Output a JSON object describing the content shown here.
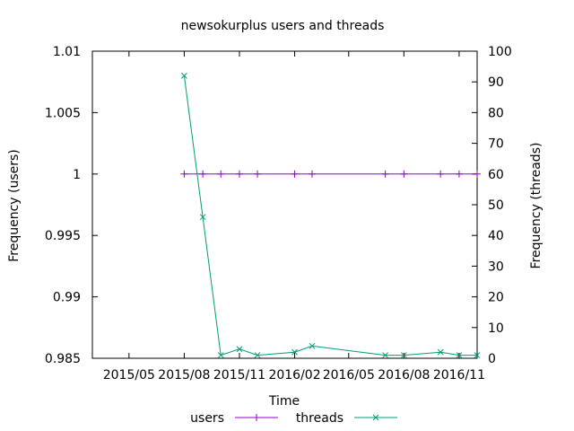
{
  "chart_data": {
    "type": "line",
    "title": "newsokurplus users and threads",
    "xlabel": "Time",
    "ylabel": "Frequency (users)",
    "y2label": "Frequency (threads)",
    "xlim": [
      "2015-03-01",
      "2016-12-01"
    ],
    "ylim": [
      0.985,
      1.01
    ],
    "y2lim": [
      0,
      100
    ],
    "x_ticks": [
      "2015/05",
      "2015/08",
      "2015/11",
      "2016/02",
      "2016/05",
      "2016/08",
      "2016/11"
    ],
    "y_ticks": [
      "0.985",
      "0.99",
      "0.995",
      "1",
      "1.005",
      "1.01"
    ],
    "y2_ticks": [
      "0",
      "10",
      "20",
      "30",
      "40",
      "50",
      "60",
      "70",
      "80",
      "90",
      "100"
    ],
    "grid": false,
    "legend": "bottom",
    "series": [
      {
        "name": "users",
        "axis": "left",
        "color": "#9400d3",
        "marker": "plus",
        "x": [
          "2015-08-01",
          "2015-09-01",
          "2015-10-01",
          "2015-11-01",
          "2015-12-01",
          "2016-02-01",
          "2016-03-01",
          "2016-07-01",
          "2016-08-01",
          "2016-10-01",
          "2016-11-01",
          "2016-12-01"
        ],
        "values": [
          1,
          1,
          1,
          1,
          1,
          1,
          1,
          1,
          1,
          1,
          1,
          1
        ]
      },
      {
        "name": "threads",
        "axis": "right",
        "color": "#009e73",
        "marker": "cross",
        "x": [
          "2015-08-01",
          "2015-09-01",
          "2015-10-01",
          "2015-11-01",
          "2015-12-01",
          "2016-02-01",
          "2016-03-01",
          "2016-07-01",
          "2016-08-01",
          "2016-10-01",
          "2016-11-01",
          "2016-12-01"
        ],
        "values": [
          92,
          46,
          1,
          3,
          1,
          2,
          4,
          1,
          1,
          2,
          1,
          1
        ]
      }
    ]
  }
}
